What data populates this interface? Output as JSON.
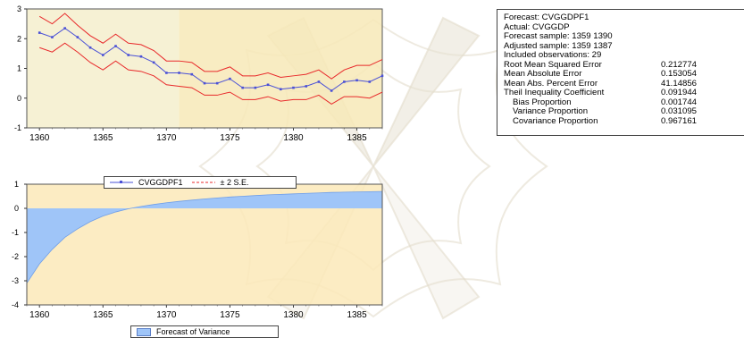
{
  "chart_data": [
    {
      "type": "line",
      "x": [
        1360,
        1361,
        1362,
        1363,
        1364,
        1365,
        1366,
        1367,
        1368,
        1369,
        1370,
        1371,
        1372,
        1373,
        1374,
        1375,
        1376,
        1377,
        1378,
        1379,
        1380,
        1381,
        1382,
        1383,
        1384,
        1385,
        1386,
        1387
      ],
      "series": [
        {
          "name": "CVGGDPF1",
          "values": [
            2.2,
            2.05,
            2.35,
            2.05,
            1.7,
            1.45,
            1.75,
            1.45,
            1.4,
            1.2,
            0.85,
            0.85,
            0.8,
            0.5,
            0.5,
            0.65,
            0.35,
            0.35,
            0.45,
            0.3,
            0.35,
            0.4,
            0.55,
            0.25,
            0.55,
            0.6,
            0.55,
            0.75
          ]
        },
        {
          "name": "± 2 S.E.",
          "values": [
            2.75,
            2.5,
            2.85,
            2.45,
            2.1,
            1.85,
            2.15,
            1.85,
            1.8,
            1.6,
            1.25,
            1.25,
            1.2,
            0.9,
            0.9,
            1.05,
            0.75,
            0.75,
            0.85,
            0.7,
            0.75,
            0.8,
            0.95,
            0.65,
            0.95,
            1.1,
            1.1,
            1.3
          ]
        },
        {
          "name": "",
          "values": [
            1.7,
            1.55,
            1.85,
            1.55,
            1.2,
            0.95,
            1.25,
            0.95,
            0.9,
            0.75,
            0.45,
            0.4,
            0.35,
            0.1,
            0.1,
            0.2,
            -0.05,
            -0.05,
            0.05,
            -0.1,
            -0.05,
            -0.05,
            0.1,
            -0.2,
            0.05,
            0.05,
            0.0,
            0.2
          ]
        }
      ],
      "xlim": [
        1359,
        1387
      ],
      "ylim": [
        -1,
        3
      ],
      "yticks": [
        -1,
        0,
        1,
        2,
        3
      ],
      "xticks": [
        1360,
        1365,
        1370,
        1375,
        1380,
        1385
      ],
      "forecast_sample_start": 1371,
      "colors": {
        "forecast": "#4a50d6",
        "bands": "#e8282a",
        "fill_history": "#f5efcc",
        "fill_forecast": "#f7e9b7"
      }
    },
    {
      "type": "area",
      "x": [
        1359,
        1360,
        1361,
        1362,
        1363,
        1364,
        1365,
        1366,
        1367,
        1368,
        1369,
        1370,
        1371,
        1372,
        1373,
        1374,
        1375,
        1376,
        1377,
        1378,
        1379,
        1380,
        1381,
        1382,
        1383,
        1384,
        1385,
        1386,
        1387
      ],
      "series": [
        {
          "name": "Forecast of Variance",
          "values": [
            -3.1,
            -2.3,
            -1.7,
            -1.2,
            -0.85,
            -0.55,
            -0.32,
            -0.15,
            -0.02,
            0.08,
            0.16,
            0.23,
            0.29,
            0.34,
            0.39,
            0.43,
            0.47,
            0.5,
            0.53,
            0.56,
            0.58,
            0.6,
            0.62,
            0.64,
            0.66,
            0.67,
            0.68,
            0.69,
            0.7
          ]
        }
      ],
      "xlim": [
        1359,
        1387
      ],
      "ylim": [
        -4,
        1
      ],
      "yticks": [
        -4,
        -3,
        -2,
        -1,
        0,
        1
      ],
      "xticks": [
        1360,
        1365,
        1370,
        1375,
        1380,
        1385
      ],
      "colors": {
        "fill": "#9fc5f8",
        "background": "#fbe9b8"
      }
    }
  ],
  "legend_top": {
    "series1": "CVGGDPF1",
    "series2": "± 2 S.E."
  },
  "legend_bottom": {
    "label": "Forecast of Variance"
  },
  "stats": {
    "lines": [
      "Forecast: CVGGDPF1",
      "Actual: CVGGDP",
      "Forecast sample: 1359 1390",
      "Adjusted sample: 1359 1387",
      "Included observations: 29"
    ],
    "metrics": [
      {
        "label": "Root Mean Squared Error",
        "value": "0.212774",
        "indent": false
      },
      {
        "label": "Mean Absolute Error",
        "value": "0.153054",
        "indent": false
      },
      {
        "label": "Mean Abs. Percent Error",
        "value": "41.14856",
        "indent": false
      },
      {
        "label": "Theil Inequality Coefficient",
        "value": "0.091944",
        "indent": false
      },
      {
        "label": "Bias Proportion",
        "value": "0.001744",
        "indent": true
      },
      {
        "label": "Variance Proportion",
        "value": "0.031095",
        "indent": true
      },
      {
        "label": "Covariance Proportion",
        "value": "0.967161",
        "indent": true
      }
    ]
  }
}
